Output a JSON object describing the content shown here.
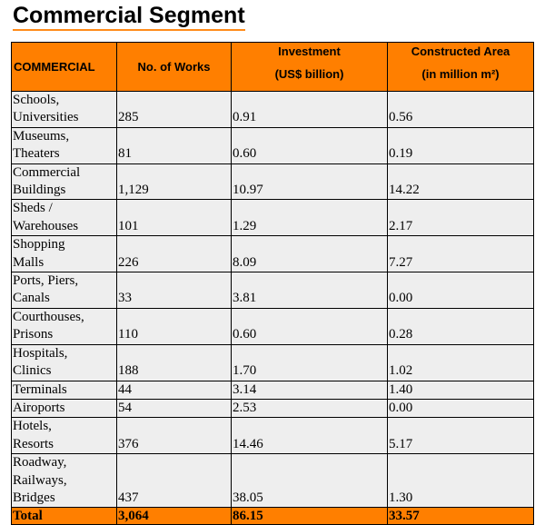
{
  "title": "Commercial Segment",
  "colors": {
    "header_bg": "#ff7f00",
    "row_bg": "#eeeeee"
  },
  "headers": {
    "commercial": "COMMERCIAL",
    "works": "No. of Works",
    "investment_line1": "Investment",
    "investment_line2": "(US$ billion)",
    "area_line1": "Constructed Area",
    "area_line2": "(in million m²)"
  },
  "rows": [
    {
      "name_line1": "Schools,",
      "name_line2": "Universities",
      "works": "285",
      "investment": "0.91",
      "area": "0.56"
    },
    {
      "name_line1": "Museums,",
      "name_line2": "Theaters",
      "works": "81",
      "investment": "0.60",
      "area": "0.19"
    },
    {
      "name_line1": "Commercial",
      "name_line2": "Buildings",
      "works": "1,129",
      "investment": "10.97",
      "area": "14.22"
    },
    {
      "name_line1": "Sheds /",
      "name_line2": "Warehouses",
      "works": "101",
      "investment": "1.29",
      "area": "2.17"
    },
    {
      "name_line1": "Shopping",
      "name_line2": "Malls",
      "works": "226",
      "investment": "8.09",
      "area": "7.27"
    },
    {
      "name_line1": "Ports, Piers,",
      "name_line2": "Canals",
      "works": "33",
      "investment": "3.81",
      "area": "0.00"
    },
    {
      "name_line1": "Courthouses,",
      "name_line2": "Prisons",
      "works": "110",
      "investment": "0.60",
      "area": "0.28"
    },
    {
      "name_line1": "Hospitals,",
      "name_line2": "Clinics",
      "works": "188",
      "investment": "1.70",
      "area": "1.02"
    },
    {
      "name_line1": "Terminals",
      "works": "44",
      "investment": "3.14",
      "area": "1.40"
    },
    {
      "name_line1": "Airoports",
      "works": "54",
      "investment": "2.53",
      "area": "0.00"
    },
    {
      "name_line1": "Hotels,",
      "name_line2": "Resorts",
      "works": "376",
      "investment": "14.46",
      "area": "5.17"
    },
    {
      "name_line1": "Roadway,",
      "name_line2": "Railways,",
      "name_line3": "Bridges",
      "works": "437",
      "investment": "38.05",
      "area": "1.30"
    }
  ],
  "total": {
    "label": "Total",
    "works": "3,064",
    "investment": "86.15",
    "area": "33.57"
  }
}
